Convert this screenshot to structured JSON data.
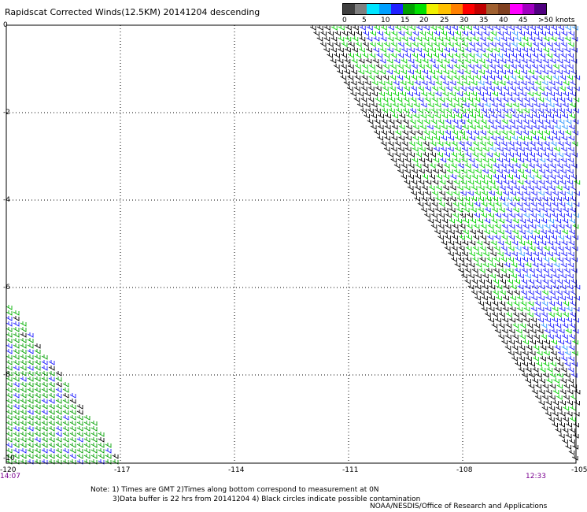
{
  "title": "Rapidscat Corrected Winds(12.5KM) 20141204 descending",
  "legend": {
    "labels": [
      "0",
      "5",
      "10",
      "15",
      "20",
      "25",
      "30",
      "35",
      "40",
      "45",
      ">50 knots"
    ],
    "colors": [
      "#404040",
      "#7f7f7f",
      "#00e5ff",
      "#00a0ff",
      "#2020ff",
      "#00a000",
      "#00e000",
      "#f0f000",
      "#ffc000",
      "#ff8000",
      "#ff0000",
      "#c00000",
      "#a06030",
      "#804020",
      "#ff00ff",
      "#a000c0",
      "#500080"
    ]
  },
  "axes": {
    "y_ticks": [
      "0",
      "-2",
      "-4",
      "-6",
      "-8",
      "-10"
    ],
    "x_ticks": [
      "-120",
      "-117",
      "-114",
      "-111",
      "-108",
      "-105"
    ]
  },
  "times": {
    "left": "14:07",
    "right": "12:33"
  },
  "notes": {
    "line1": "Note: 1) Times are GMT 2)Times along bottom correspond to measurement at 0N",
    "line2": "3)Data buffer is 22 hrs from 20141204 4) Black circles indicate possible contamination"
  },
  "credit": "NOAA/NESDIS/Office of Research and Applications"
}
